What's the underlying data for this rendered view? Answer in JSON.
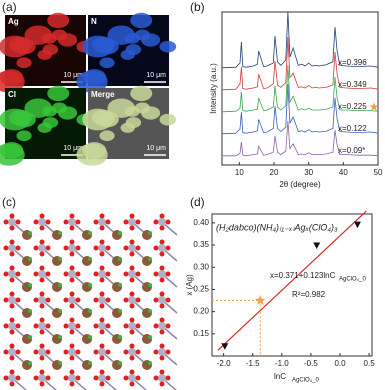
{
  "panels": {
    "a": {
      "label": "(a)",
      "tiles": [
        "Ag",
        "N",
        "Cl",
        "Merge"
      ],
      "scale_bar": "10 μm"
    },
    "b": {
      "label": "(b)"
    },
    "c": {
      "label": "(c)"
    },
    "d": {
      "label": "(d)"
    }
  },
  "chart_data": [
    {
      "type": "line",
      "x_label": "2θ (degree)",
      "y_label": "Intensity (a.u.)",
      "xlim": [
        5,
        50
      ],
      "xticks": [
        10,
        20,
        30,
        40,
        50
      ],
      "x": [
        5,
        9,
        10.2,
        10.6,
        11,
        12,
        14,
        15.2,
        15.6,
        17,
        18,
        19.8,
        20.3,
        21,
        22,
        23.4,
        24,
        24.6,
        25.5,
        27,
        28,
        29,
        30,
        31,
        32,
        33,
        35,
        37,
        37.6,
        38.2,
        39,
        41,
        44,
        48,
        50
      ],
      "series": [
        {
          "name": "x=0.396",
          "color": "#243f73",
          "values": [
            0.02,
            0.03,
            0.1,
            0.45,
            0.04,
            0.03,
            0.05,
            0.08,
            0.3,
            0.04,
            0.05,
            0.1,
            0.55,
            0.12,
            0.06,
            0.15,
            0.95,
            0.2,
            0.35,
            0.06,
            0.08,
            0.05,
            0.1,
            0.05,
            0.06,
            0.05,
            0.07,
            0.12,
            0.7,
            0.3,
            0.06,
            0.05,
            0.04,
            0.05,
            0.03
          ]
        },
        {
          "name": "x=0.349",
          "color": "#d63a3a",
          "values": [
            0.02,
            0.03,
            0.12,
            0.4,
            0.04,
            0.03,
            0.05,
            0.07,
            0.28,
            0.04,
            0.05,
            0.12,
            0.5,
            0.1,
            0.06,
            0.14,
            0.9,
            0.22,
            0.3,
            0.06,
            0.07,
            0.05,
            0.09,
            0.05,
            0.06,
            0.05,
            0.06,
            0.1,
            0.65,
            0.28,
            0.06,
            0.05,
            0.04,
            0.05,
            0.03
          ]
        },
        {
          "name": "x=0.225",
          "color": "#3aa655",
          "values": [
            0.02,
            0.03,
            0.08,
            0.35,
            0.04,
            0.03,
            0.05,
            0.06,
            0.25,
            0.04,
            0.05,
            0.1,
            0.45,
            0.1,
            0.05,
            0.12,
            0.8,
            0.18,
            0.28,
            0.05,
            0.07,
            0.05,
            0.08,
            0.05,
            0.05,
            0.05,
            0.06,
            0.1,
            0.6,
            0.25,
            0.05,
            0.05,
            0.04,
            0.04,
            0.03
          ]
        },
        {
          "name": "x=0.122",
          "color": "#3b5fc0",
          "values": [
            0.02,
            0.03,
            0.1,
            0.38,
            0.04,
            0.03,
            0.05,
            0.07,
            0.26,
            0.04,
            0.05,
            0.11,
            0.48,
            0.11,
            0.06,
            0.13,
            0.85,
            0.2,
            0.3,
            0.06,
            0.07,
            0.05,
            0.09,
            0.05,
            0.06,
            0.05,
            0.06,
            0.11,
            0.62,
            0.27,
            0.06,
            0.05,
            0.04,
            0.05,
            0.03
          ]
        },
        {
          "name": "x=0.09*",
          "color": "#8a62a8",
          "values": [
            0.02,
            0.02,
            0.06,
            0.25,
            0.03,
            0.02,
            0.04,
            0.05,
            0.18,
            0.03,
            0.04,
            0.08,
            0.35,
            0.08,
            0.04,
            0.1,
            0.6,
            0.14,
            0.22,
            0.04,
            0.05,
            0.04,
            0.07,
            0.04,
            0.04,
            0.04,
            0.05,
            0.08,
            0.45,
            0.2,
            0.04,
            0.04,
            0.03,
            0.03,
            0.02
          ]
        }
      ]
    },
    {
      "type": "scatter",
      "title": "(H₂dabco)(NH₄)₍₁₋ₓ₎Agₓ(ClO₄)₃",
      "equation": "x=0.371+0.123lnC",
      "equation_sub": "AgClO₄_0",
      "r_squared": "R²=0.982",
      "x_label": "lnC",
      "x_label_sub": "AgClO₄_0",
      "y_label": "x (Ag)",
      "xlim": [
        -2.2,
        0.55
      ],
      "ylim": [
        0.1,
        0.42
      ],
      "xticks": [
        {
          "value": -2.0,
          "label": "-2.0"
        },
        -1.5,
        {
          "value": -1.0,
          "label": "-1.0"
        },
        -0.5,
        {
          "value": 0.0,
          "label": "0.0"
        },
        0.5
      ],
      "yticks": [
        0.15,
        {
          "value": 0.2,
          "label": "0.20"
        },
        0.25,
        {
          "value": 0.3,
          "label": "0.30"
        },
        0.35,
        {
          "value": 0.4,
          "label": "0.40"
        }
      ],
      "series": [
        {
          "color": "#111111",
          "x": [
            -1.98,
            -0.4,
            0.3
          ],
          "values": [
            0.122,
            0.349,
            0.396
          ]
        }
      ],
      "highlight": {
        "color": "#f0a050",
        "x": -1.37,
        "y": 0.225
      },
      "fit": {
        "color": "#d62a2a",
        "x": [
          -2.1,
          0.45
        ],
        "intercept": 0.371,
        "slope": 0.123
      }
    }
  ]
}
